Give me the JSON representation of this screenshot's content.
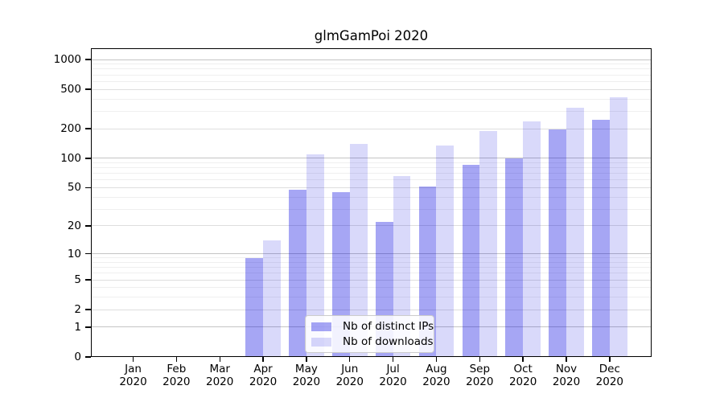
{
  "chart_data": {
    "type": "bar",
    "title": "glmGamPoi 2020",
    "categories": [
      "Jan",
      "Feb",
      "Mar",
      "Apr",
      "May",
      "Jun",
      "Jul",
      "Aug",
      "Sep",
      "Oct",
      "Nov",
      "Dec"
    ],
    "category_year": "2020",
    "series": [
      {
        "name": "Nb of distinct IPs",
        "color": "rgba(0,0,224,0.35)",
        "values": [
          0,
          0,
          0,
          9,
          48,
          45,
          22,
          51,
          86,
          100,
          197,
          248
        ]
      },
      {
        "name": "Nb of downloads",
        "color": "rgba(0,0,224,0.15)",
        "values": [
          0,
          0,
          0,
          14,
          110,
          140,
          66,
          134,
          190,
          236,
          326,
          417
        ]
      }
    ],
    "y_axis": {
      "scale": "log1p",
      "min": 0,
      "max": 1300,
      "major_ticks": [
        0,
        1,
        2,
        5,
        10,
        20,
        50,
        100,
        200,
        500,
        1000
      ],
      "decade_ticks": [
        1,
        10,
        100,
        1000
      ],
      "minor_ticks": [
        3,
        4,
        6,
        7,
        8,
        9,
        30,
        40,
        60,
        70,
        80,
        90,
        300,
        400,
        600,
        700,
        800,
        900
      ]
    },
    "x_axis": {
      "label_year_on_second_line": true
    },
    "grid": true,
    "legend": {
      "position": "lower-center"
    }
  },
  "colors": {
    "background": "#ffffff",
    "axis": "#000000",
    "grid_decade": "#c4c4c4",
    "grid_major": "#dedede",
    "grid_minor": "#efefef",
    "bar_distinct_ips": "rgba(0,0,224,0.35)",
    "bar_downloads": "rgba(0,0,224,0.15)",
    "legend_border": "#cccccc"
  }
}
